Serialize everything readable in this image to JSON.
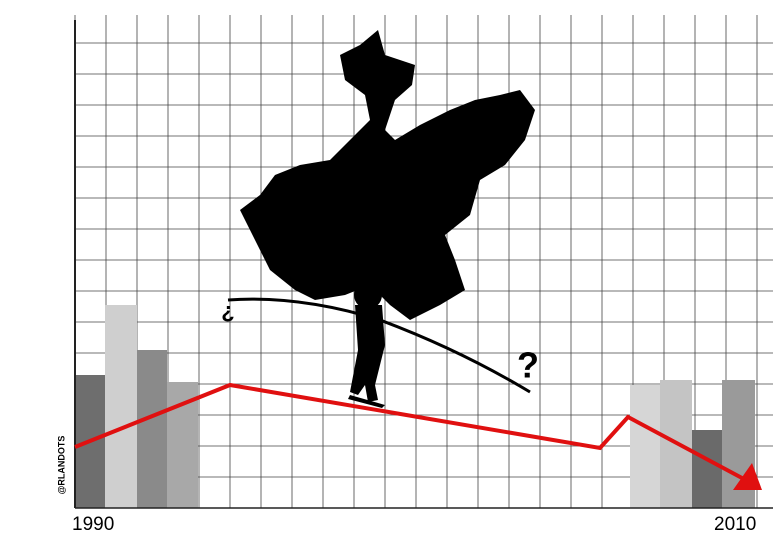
{
  "labels": {
    "start": "1990",
    "end": "2010",
    "signature": "@RLANDOTS",
    "open_question": "¿",
    "close_question": "?"
  }
}
